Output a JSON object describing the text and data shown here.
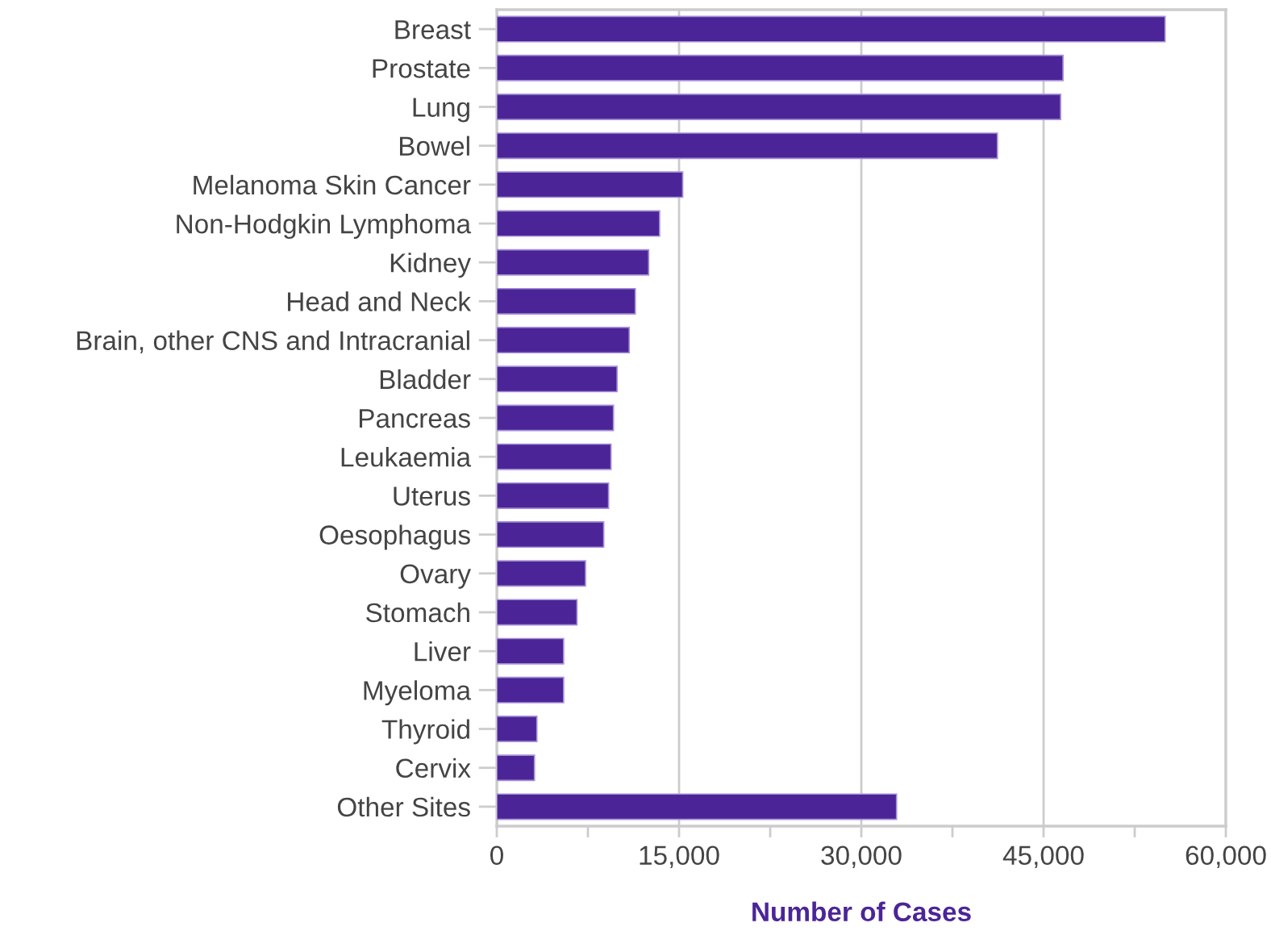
{
  "chart_data": {
    "type": "bar",
    "orientation": "horizontal",
    "xlabel": "Number of Cases",
    "categories": [
      "Breast",
      "Prostate",
      "Lung",
      "Bowel",
      "Melanoma Skin Cancer",
      "Non-Hodgkin Lymphoma",
      "Kidney",
      "Head and Neck",
      "Brain, other CNS and Intracranial",
      "Bladder",
      "Pancreas",
      "Leukaemia",
      "Uterus",
      "Oesophagus",
      "Ovary",
      "Stomach",
      "Liver",
      "Myeloma",
      "Thyroid",
      "Cervix",
      "Other Sites"
    ],
    "values": [
      55000,
      46600,
      46400,
      41200,
      15300,
      13400,
      12500,
      11400,
      10900,
      9900,
      9600,
      9400,
      9200,
      8800,
      7300,
      6600,
      5500,
      5500,
      3300,
      3100,
      32900
    ],
    "color": "#4b2597",
    "xlim": [
      0,
      60000
    ],
    "xticks": [
      {
        "value": 0,
        "label": "0"
      },
      {
        "value": 7500,
        "label": null
      },
      {
        "value": 15000,
        "label": "15,000"
      },
      {
        "value": 22500,
        "label": null
      },
      {
        "value": 30000,
        "label": "30,000"
      },
      {
        "value": 37500,
        "label": null
      },
      {
        "value": 45000,
        "label": "45,000"
      },
      {
        "value": 52500,
        "label": null
      },
      {
        "value": 60000,
        "label": "60,000"
      }
    ],
    "grid": "x"
  }
}
